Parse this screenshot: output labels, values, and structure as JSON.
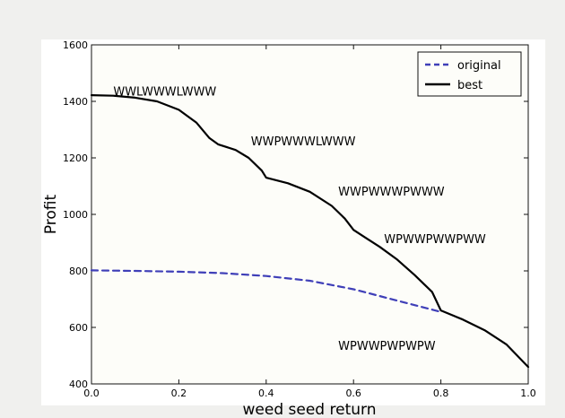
{
  "chart_data": {
    "type": "line",
    "xlabel": "weed seed return",
    "ylabel": "Profit",
    "xlim": [
      0.0,
      1.0
    ],
    "ylim": [
      400,
      1600
    ],
    "xticks": [
      0.0,
      0.2,
      0.4,
      0.6,
      0.8,
      1.0
    ],
    "xtick_labels": [
      "0.0",
      "0.2",
      "0.4",
      "0.6",
      "0.8",
      "1.0"
    ],
    "yticks": [
      400,
      600,
      800,
      1000,
      1200,
      1400,
      1600
    ],
    "ytick_labels": [
      "400",
      "600",
      "800",
      "1000",
      "1200",
      "1400",
      "1600"
    ],
    "grid": false,
    "legend": {
      "position": "top-right"
    },
    "series": [
      {
        "name": "original",
        "style": "dashed",
        "color": "#3f3fb8",
        "x": [
          0.0,
          0.1,
          0.2,
          0.3,
          0.4,
          0.5,
          0.6,
          0.7,
          0.8
        ],
        "y": [
          802,
          800,
          797,
          792,
          782,
          765,
          735,
          695,
          655
        ]
      },
      {
        "name": "best",
        "style": "solid",
        "color": "#000000",
        "x": [
          0.0,
          0.05,
          0.1,
          0.15,
          0.2,
          0.24,
          0.27,
          0.29,
          0.33,
          0.36,
          0.39,
          0.4,
          0.45,
          0.5,
          0.55,
          0.58,
          0.6,
          0.63,
          0.66,
          0.7,
          0.74,
          0.78,
          0.8,
          0.85,
          0.9,
          0.95,
          1.0
        ],
        "y": [
          1422,
          1420,
          1413,
          1400,
          1370,
          1325,
          1270,
          1248,
          1228,
          1200,
          1155,
          1130,
          1110,
          1080,
          1030,
          985,
          945,
          915,
          885,
          840,
          785,
          725,
          660,
          628,
          590,
          540,
          460
        ]
      }
    ],
    "annotations": [
      {
        "text": "WWLWWWLWWW",
        "x": 0.05,
        "y": 1420
      },
      {
        "text": "WWPWWWLWWW",
        "x": 0.365,
        "y": 1245
      },
      {
        "text": "WWPWWWPWWW",
        "x": 0.565,
        "y": 1067
      },
      {
        "text": "WPWWPWWPWW",
        "x": 0.67,
        "y": 898
      },
      {
        "text": "WPWWPWPWPW",
        "x": 0.565,
        "y": 520
      }
    ]
  }
}
